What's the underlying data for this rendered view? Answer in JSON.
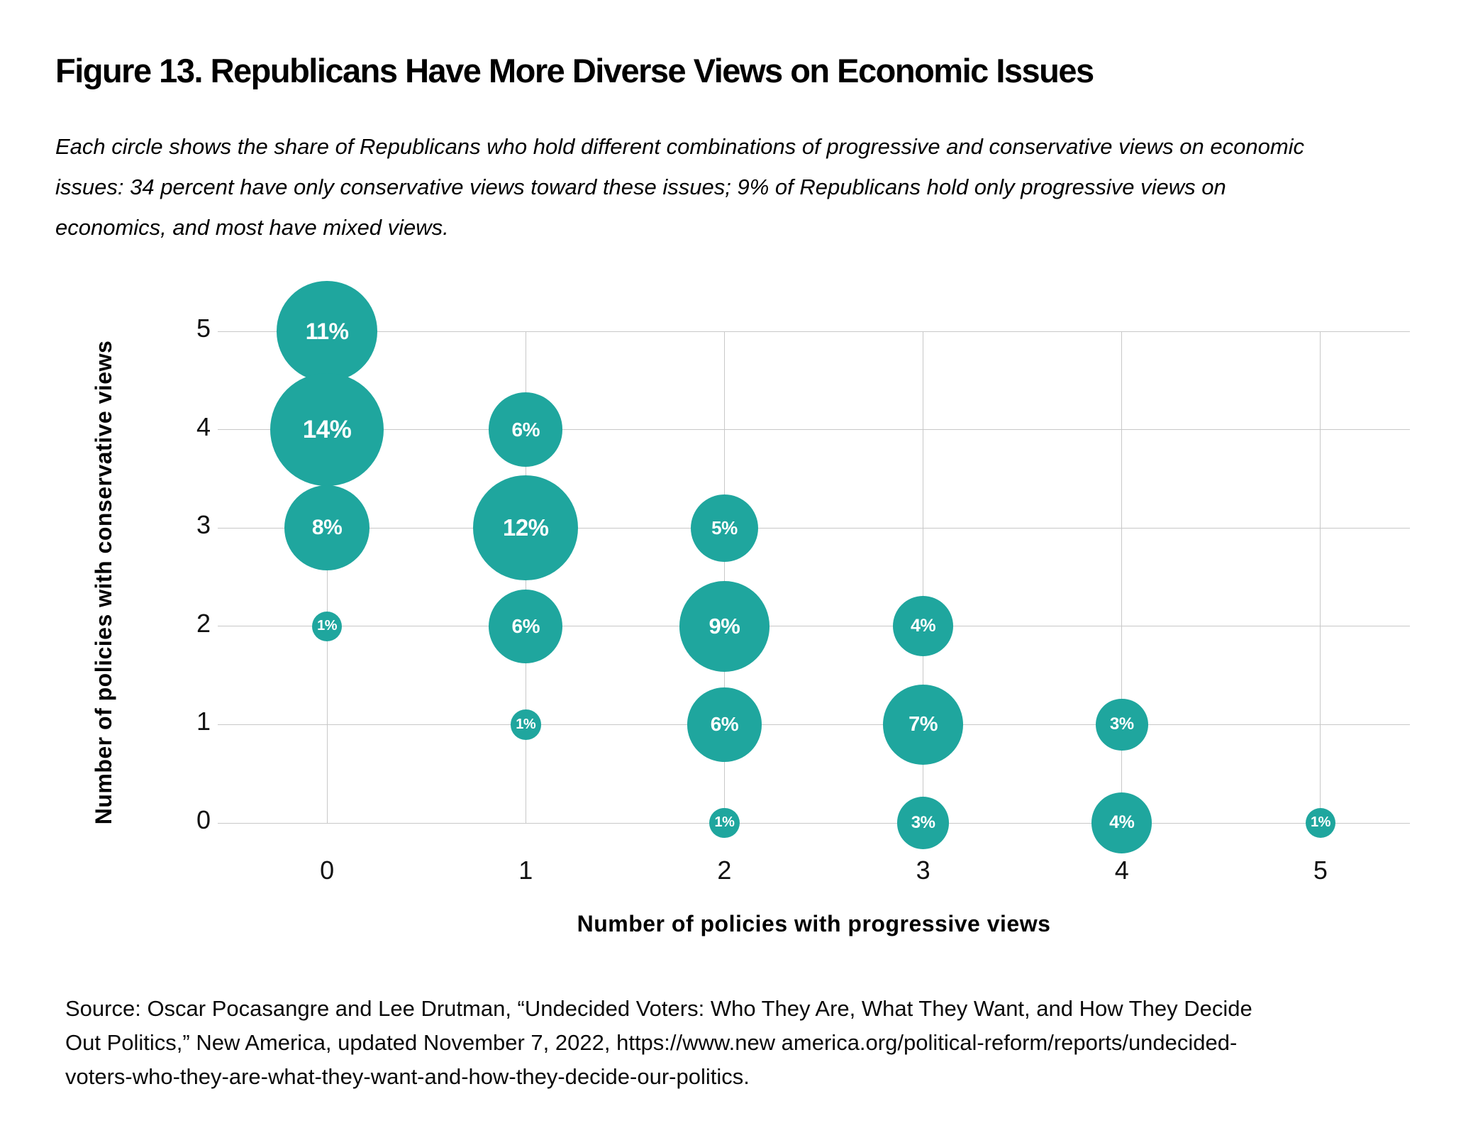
{
  "figure": {
    "title": "Figure 13. Republicans Have More Diverse Views on Economic Issues",
    "subtitle_lines": [
      "Each circle shows the share of Republicans who hold different combinations of progressive and conservative views on economic",
      "issues: 34 percent have only conservative views toward these issues; 9% of Republicans hold only progressive views on",
      "economics, and most have mixed views."
    ],
    "source_lines": [
      "Source: Oscar Pocasangre and Lee Drutman, “Undecided Voters: Who They Are, What They Want, and How They Decide",
      "Out Politics,” New America, updated November 7, 2022, https://www.new america.org/political-reform/reports/undecided-",
      "voters-who-they-are-what-they-want-and-how-they-decide-our-politics."
    ]
  },
  "chart_data": {
    "type": "scatter",
    "subtype": "bubble",
    "xlabel": "Number of policies with progressive views",
    "ylabel": "Number of policies with conservative views",
    "x_ticks": [
      "0",
      "1",
      "2",
      "3",
      "4",
      "5"
    ],
    "y_ticks": [
      "5",
      "4",
      "3",
      "2",
      "1",
      "0"
    ],
    "xlim": [
      -0.55,
      5.45
    ],
    "ylim": [
      0,
      5
    ],
    "grid": "on",
    "bubble_color": "#1FA69E",
    "bubble_label_color": "#ffffff",
    "gridline_color": "#c8c8c8",
    "points": [
      {
        "x": 0,
        "y": 5,
        "value": 11,
        "label": "11%"
      },
      {
        "x": 0,
        "y": 4,
        "value": 14,
        "label": "14%"
      },
      {
        "x": 0,
        "y": 3,
        "value": 8,
        "label": "8%"
      },
      {
        "x": 0,
        "y": 2,
        "value": 1,
        "label": "1%"
      },
      {
        "x": 1,
        "y": 4,
        "value": 6,
        "label": "6%"
      },
      {
        "x": 1,
        "y": 3,
        "value": 12,
        "label": "12%"
      },
      {
        "x": 1,
        "y": 2,
        "value": 6,
        "label": "6%"
      },
      {
        "x": 1,
        "y": 1,
        "value": 1,
        "label": "1%"
      },
      {
        "x": 2,
        "y": 3,
        "value": 5,
        "label": "5%"
      },
      {
        "x": 2,
        "y": 2,
        "value": 9,
        "label": "9%"
      },
      {
        "x": 2,
        "y": 1,
        "value": 6,
        "label": "6%"
      },
      {
        "x": 2,
        "y": 0,
        "value": 1,
        "label": "1%"
      },
      {
        "x": 3,
        "y": 2,
        "value": 4,
        "label": "4%"
      },
      {
        "x": 3,
        "y": 1,
        "value": 7,
        "label": "7%"
      },
      {
        "x": 3,
        "y": 0,
        "value": 3,
        "label": "3%"
      },
      {
        "x": 4,
        "y": 1,
        "value": 3,
        "label": "3%"
      },
      {
        "x": 4,
        "y": 0,
        "value": 4,
        "label": "4%"
      },
      {
        "x": 5,
        "y": 0,
        "value": 1,
        "label": "1%"
      }
    ]
  }
}
